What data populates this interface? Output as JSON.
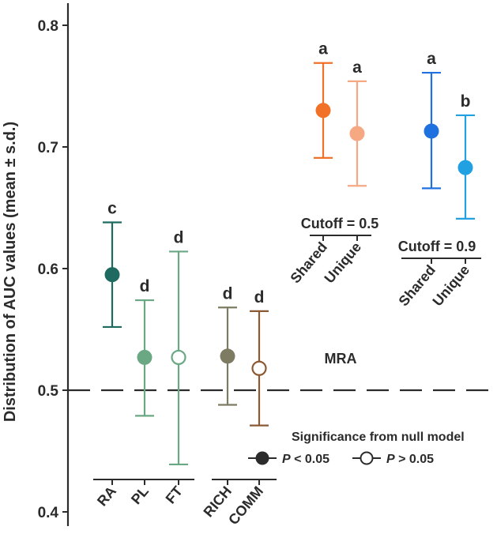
{
  "chart_data": {
    "type": "errorbar-dot",
    "ylabel": "Distribution of AUC values (mean ± s.d.)",
    "ylim": [
      0.4,
      0.8
    ],
    "yticks": [
      0.4,
      0.5,
      0.6,
      0.7,
      0.8
    ],
    "ytick_labels": [
      "0.4",
      "0.5",
      "0.6",
      "0.7",
      "0.8"
    ],
    "reference_line": {
      "y": 0.5,
      "style": "dashed",
      "label": "MRA"
    },
    "points": [
      {
        "label": "RA",
        "mean": 0.595,
        "lower": 0.552,
        "upper": 0.638,
        "letter": "c",
        "significant": true,
        "color": "#1f6a60"
      },
      {
        "label": "PL",
        "mean": 0.527,
        "lower": 0.479,
        "upper": 0.574,
        "letter": "d",
        "significant": true,
        "color": "#6aa883"
      },
      {
        "label": "FT",
        "mean": 0.527,
        "lower": 0.439,
        "upper": 0.614,
        "letter": "d",
        "significant": false,
        "color": "#6aa883"
      },
      {
        "label": "RICH",
        "mean": 0.528,
        "lower": 0.488,
        "upper": 0.568,
        "letter": "d",
        "significant": true,
        "color": "#7d7b62"
      },
      {
        "label": "COMM",
        "mean": 0.518,
        "lower": 0.471,
        "upper": 0.565,
        "letter": "d",
        "significant": false,
        "color": "#8b5a34"
      },
      {
        "label": "Shared",
        "mean": 0.73,
        "lower": 0.691,
        "upper": 0.769,
        "letter": "a",
        "significant": true,
        "color": "#f07127"
      },
      {
        "label": "Unique",
        "mean": 0.711,
        "lower": 0.668,
        "upper": 0.754,
        "letter": "a",
        "significant": true,
        "color": "#f6a882"
      },
      {
        "label": "Shared",
        "mean": 0.713,
        "lower": 0.666,
        "upper": 0.761,
        "letter": "a",
        "significant": true,
        "color": "#2071e0"
      },
      {
        "label": "Unique",
        "mean": 0.683,
        "lower": 0.641,
        "upper": 0.726,
        "letter": "b",
        "significant": true,
        "color": "#21a0e2"
      }
    ],
    "group_labels": [
      "Cutoff = 0.5",
      "Cutoff = 0.9"
    ],
    "legend": {
      "title": "Significance from null model",
      "items": [
        {
          "marker": "filled",
          "p_symbol": "P",
          "text": " < 0.05"
        },
        {
          "marker": "open",
          "p_symbol": "P",
          "text": " > 0.05"
        }
      ]
    }
  }
}
